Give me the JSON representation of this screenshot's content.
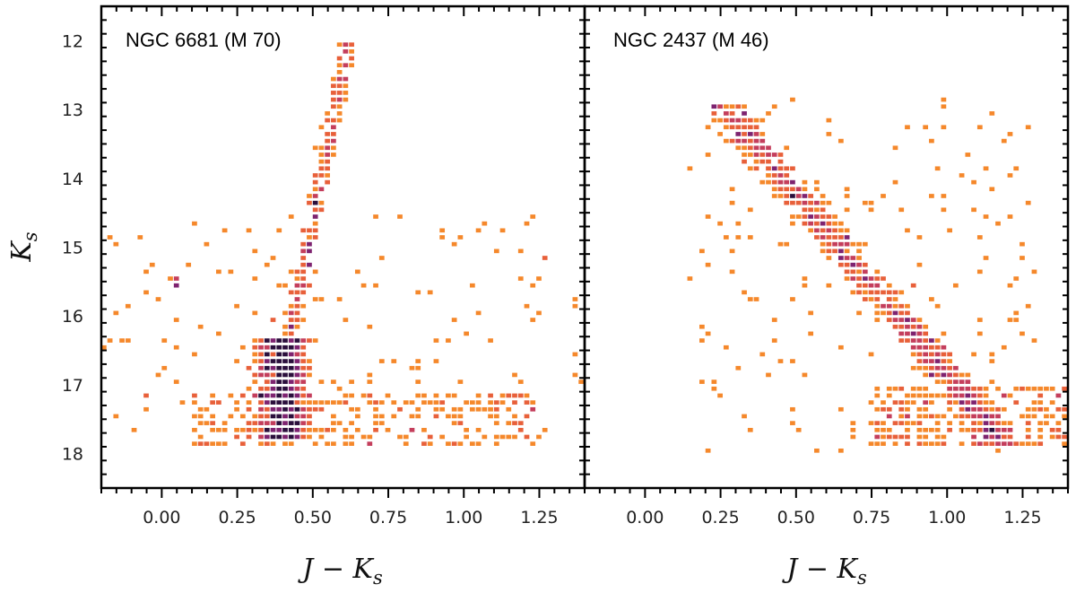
{
  "figure": {
    "colors": {
      "low": "#f5882b",
      "mid1": "#e8603a",
      "mid2": "#c43e5c",
      "high": "#7e2370",
      "max": "#2b0f3c",
      "axis": "#000000"
    }
  },
  "chart_data": [
    {
      "type": "heatmap",
      "title": "NGC 6681 (M 70)",
      "xlabel": "J − K",
      "xlabel_sub": "s",
      "ylabel": "K",
      "ylabel_sub": "s",
      "xlim": [
        -0.2,
        1.4
      ],
      "ylim": [
        18.5,
        11.5
      ],
      "xticks": [
        "0.00",
        "0.25",
        "0.50",
        "0.75",
        "1.00",
        "1.25"
      ],
      "yticks": [
        "12",
        "13",
        "14",
        "15",
        "16",
        "17",
        "18"
      ],
      "cmap": "inferno_r",
      "bin_size": {
        "color": 0.02,
        "mag": 0.1
      },
      "density_components": [
        {
          "feature": "giant branch",
          "color_range": [
            0.36,
            0.62
          ],
          "mag_range": [
            12.0,
            16.5
          ],
          "relative_density": "low-medium"
        },
        {
          "feature": "horizontal branch (blue)",
          "color": 0.05,
          "mag": 15.5,
          "relative_density": "medium"
        },
        {
          "feature": "main-sequence turnoff / subgiant",
          "color_range": [
            0.25,
            0.6
          ],
          "mag_range": [
            16.3,
            17.8
          ],
          "relative_density": "high"
        },
        {
          "feature": "lower main sequence",
          "color_range": [
            0.1,
            1.25
          ],
          "mag_range": [
            17.1,
            17.9
          ],
          "relative_density": "high near 0.3-0.5, low elsewhere"
        },
        {
          "feature": "field scatter",
          "color_range": [
            -0.2,
            1.4
          ],
          "mag_range": [
            14.5,
            17.8
          ],
          "relative_density": "sparse"
        }
      ]
    },
    {
      "type": "heatmap",
      "title": "NGC 2437 (M 46)",
      "xlabel": "J − K",
      "xlabel_sub": "s",
      "xlim": [
        -0.2,
        1.4
      ],
      "ylim": [
        18.5,
        11.5
      ],
      "xticks": [
        "0.00",
        "0.25",
        "0.50",
        "0.75",
        "1.00",
        "1.25"
      ],
      "cmap": "inferno_r",
      "bin_size": {
        "color": 0.02,
        "mag": 0.1
      },
      "density_components": [
        {
          "feature": "main sequence (upper)",
          "color_range": [
            0.2,
            0.55
          ],
          "mag_range": [
            12.9,
            15.5
          ],
          "relative_density": "low-medium"
        },
        {
          "feature": "main sequence (middle)",
          "color_range": [
            0.5,
            0.95
          ],
          "mag_range": [
            15.0,
            17.0
          ],
          "relative_density": "medium"
        },
        {
          "feature": "main sequence (lower)",
          "color_range": [
            0.8,
            1.4
          ],
          "mag_range": [
            17.0,
            17.9
          ],
          "relative_density": "medium-high"
        },
        {
          "feature": "field scatter",
          "color_range": [
            0.15,
            1.3
          ],
          "mag_range": [
            12.8,
            18.0
          ],
          "relative_density": "sparse"
        }
      ]
    }
  ]
}
